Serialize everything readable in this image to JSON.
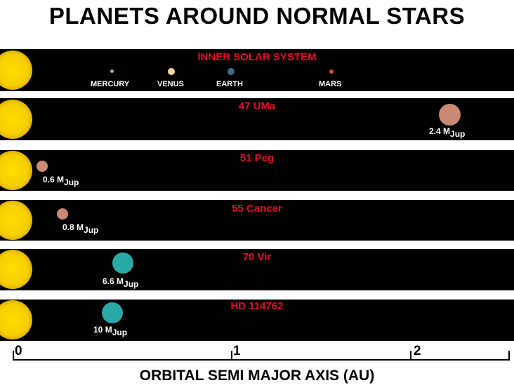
{
  "title": "PLANETS AROUND NORMAL STARS",
  "colors": {
    "label": "#e0102a",
    "rocky": "#c98a74",
    "gas": "#2aa9a9",
    "mercury": "#d89a88",
    "venus": "#f5d9a0",
    "earth": "#3e6c8c",
    "mars": "#e04a2a"
  },
  "axis": {
    "title": "ORBITAL SEMI MAJOR AXIS (AU)",
    "ticks": [
      {
        "value": 0,
        "label": "0"
      },
      {
        "value": 1,
        "label": "1"
      },
      {
        "value": 2,
        "label": "2"
      }
    ],
    "range": [
      0,
      2.3
    ]
  },
  "systems": [
    {
      "name": "INNER SOLAR SYSTEM",
      "planets": [
        {
          "label": "MERCURY",
          "a": 0.39,
          "color": "mercury"
        },
        {
          "label": "VENUS",
          "a": 0.72,
          "color": "venus"
        },
        {
          "label": "EARTH",
          "a": 1.0,
          "color": "earth"
        },
        {
          "label": "MARS",
          "a": 1.52,
          "color": "mars"
        }
      ]
    },
    {
      "name": "47 UMa",
      "planets": [
        {
          "a": 2.1,
          "mass": "2.4",
          "unit": "M",
          "sub": "Jup",
          "color": "rocky"
        }
      ]
    },
    {
      "name": "51 Peg",
      "planets": [
        {
          "a": 0.05,
          "mass": "0.6",
          "unit": "M",
          "sub": "Jup",
          "color": "rocky"
        }
      ]
    },
    {
      "name": "55 Cancer",
      "planets": [
        {
          "a": 0.11,
          "mass": "0.8",
          "unit": "M",
          "sub": "Jup",
          "color": "rocky"
        }
      ]
    },
    {
      "name": "70 Vir",
      "planets": [
        {
          "a": 0.43,
          "mass": "6.6",
          "unit": "M",
          "sub": "Jup",
          "color": "gas"
        }
      ]
    },
    {
      "name": "HD 114762",
      "planets": [
        {
          "a": 0.41,
          "mass": "10",
          "unit": "M",
          "sub": "Jup",
          "color": "gas"
        }
      ]
    }
  ]
}
